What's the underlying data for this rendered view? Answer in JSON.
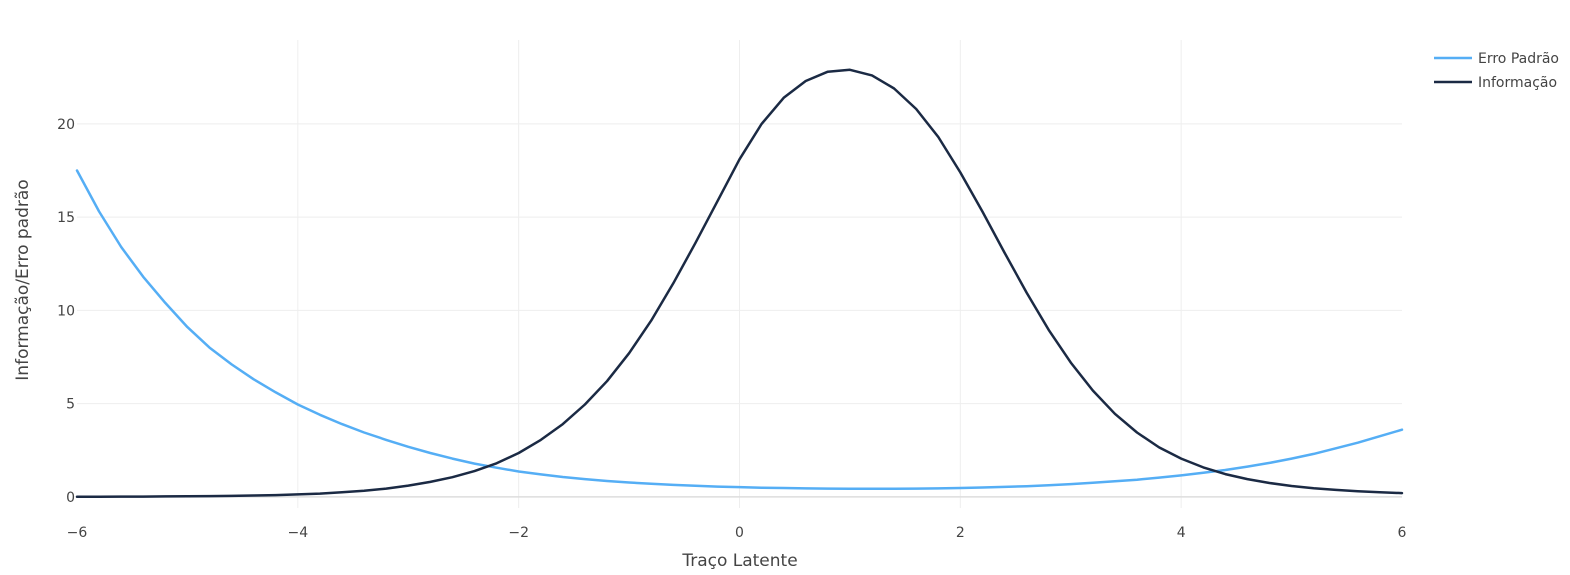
{
  "chart_data": {
    "type": "line",
    "title": "",
    "xlabel": "Traço Latente",
    "ylabel": "Informação/Erro padrão",
    "xlim": [
      -6,
      6
    ],
    "ylim": [
      -0.6,
      24.5
    ],
    "xticks": [
      -6,
      -4,
      -2,
      0,
      2,
      4,
      6
    ],
    "xtick_labels": [
      "−6",
      "−4",
      "−2",
      "0",
      "2",
      "4",
      "6"
    ],
    "yticks": [
      0,
      5,
      10,
      15,
      20
    ],
    "ytick_labels": [
      "0",
      "5",
      "10",
      "15",
      "20"
    ],
    "grid": true,
    "legend": "top-right",
    "series": [
      {
        "name": "Erro Padrão",
        "color": "#55aef5",
        "x": [
          -6,
          -5.8,
          -5.6,
          -5.4,
          -5.2,
          -5,
          -4.8,
          -4.6,
          -4.4,
          -4.2,
          -4,
          -3.8,
          -3.6,
          -3.4,
          -3.2,
          -3,
          -2.8,
          -2.6,
          -2.4,
          -2.2,
          -2,
          -1.8,
          -1.6,
          -1.4,
          -1.2,
          -1,
          -0.8,
          -0.6,
          -0.4,
          -0.2,
          0,
          0.2,
          0.4,
          0.6,
          0.8,
          1,
          1.2,
          1.4,
          1.6,
          1.8,
          2,
          2.2,
          2.4,
          2.6,
          2.8,
          3,
          3.2,
          3.4,
          3.6,
          3.8,
          4,
          4.2,
          4.4,
          4.6,
          4.8,
          5,
          5.2,
          5.4,
          5.6,
          5.8,
          6
        ],
        "values": [
          17.5,
          15.3,
          13.4,
          11.8,
          10.4,
          9.1,
          8.0,
          7.1,
          6.3,
          5.6,
          4.95,
          4.4,
          3.9,
          3.45,
          3.05,
          2.68,
          2.35,
          2.05,
          1.78,
          1.56,
          1.36,
          1.2,
          1.06,
          0.95,
          0.85,
          0.77,
          0.7,
          0.64,
          0.59,
          0.55,
          0.52,
          0.49,
          0.47,
          0.45,
          0.44,
          0.43,
          0.43,
          0.43,
          0.44,
          0.45,
          0.47,
          0.5,
          0.53,
          0.57,
          0.62,
          0.68,
          0.75,
          0.83,
          0.92,
          1.03,
          1.15,
          1.29,
          1.44,
          1.62,
          1.82,
          2.05,
          2.3,
          2.6,
          2.9,
          3.25,
          3.6
        ]
      },
      {
        "name": "Informação",
        "color": "#1b2a44",
        "x": [
          -6,
          -5.8,
          -5.6,
          -5.4,
          -5.2,
          -5,
          -4.8,
          -4.6,
          -4.4,
          -4.2,
          -4,
          -3.8,
          -3.6,
          -3.4,
          -3.2,
          -3,
          -2.8,
          -2.6,
          -2.4,
          -2.2,
          -2,
          -1.8,
          -1.6,
          -1.4,
          -1.2,
          -1,
          -0.8,
          -0.6,
          -0.4,
          -0.2,
          0,
          0.2,
          0.4,
          0.6,
          0.8,
          1,
          1.2,
          1.4,
          1.6,
          1.8,
          2,
          2.2,
          2.4,
          2.6,
          2.8,
          3,
          3.2,
          3.4,
          3.6,
          3.8,
          4,
          4.2,
          4.4,
          4.6,
          4.8,
          5,
          5.2,
          5.4,
          5.6,
          5.8,
          6
        ],
        "values": [
          0.0,
          0.0,
          0.01,
          0.01,
          0.02,
          0.03,
          0.04,
          0.05,
          0.07,
          0.09,
          0.13,
          0.17,
          0.24,
          0.32,
          0.44,
          0.6,
          0.8,
          1.05,
          1.38,
          1.8,
          2.35,
          3.05,
          3.9,
          4.95,
          6.2,
          7.7,
          9.45,
          11.45,
          13.6,
          15.85,
          18.1,
          20.0,
          21.4,
          22.3,
          22.8,
          22.9,
          22.6,
          21.9,
          20.8,
          19.3,
          17.4,
          15.3,
          13.1,
          10.95,
          8.95,
          7.2,
          5.7,
          4.45,
          3.45,
          2.65,
          2.05,
          1.58,
          1.22,
          0.95,
          0.74,
          0.58,
          0.46,
          0.37,
          0.3,
          0.24,
          0.2
        ]
      }
    ]
  }
}
